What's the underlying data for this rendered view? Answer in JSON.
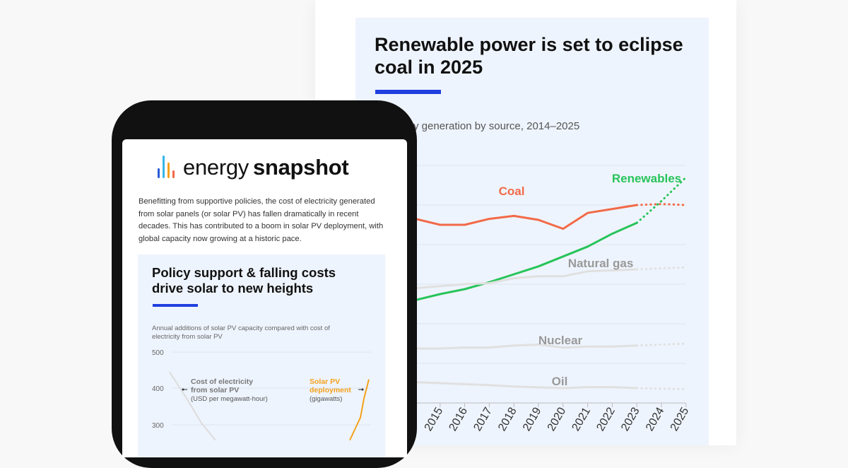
{
  "document": {
    "title": "Renewable power is set to eclipse coal in 2025",
    "subtitle": "electricity generation by source, 2014–2025",
    "accent_color": "#1f3fe0",
    "chart_data": {
      "type": "line",
      "x": [
        "2014",
        "2015",
        "2016",
        "2017",
        "2018",
        "2019",
        "2020",
        "2021",
        "2022",
        "2023",
        "2024",
        "2025"
      ],
      "x_tick_labels": [
        "2015",
        "2016",
        "2017",
        "2018",
        "2019",
        "2020",
        "2021",
        "2022",
        "2023",
        "2024",
        "2025"
      ],
      "projected_from": "2023",
      "grid": true,
      "series": [
        {
          "name": "Coal",
          "color": "#f26a48",
          "values": [
            9.3,
            9.0,
            9.0,
            9.3,
            9.45,
            9.25,
            8.8,
            9.6,
            9.8,
            10.0,
            10.05,
            10.0
          ]
        },
        {
          "name": "Renewables",
          "color": "#27c45a",
          "values": [
            5.2,
            5.5,
            5.75,
            6.1,
            6.5,
            6.9,
            7.4,
            7.9,
            8.55,
            9.1,
            10.2,
            11.4
          ]
        },
        {
          "name": "Natural gas",
          "color": "#b9b9b9",
          "values": [
            5.8,
            5.9,
            6.0,
            6.05,
            6.3,
            6.4,
            6.4,
            6.65,
            6.7,
            6.75,
            6.8,
            6.85
          ]
        },
        {
          "name": "Nuclear",
          "color": "#b9b9b9",
          "values": [
            2.75,
            2.75,
            2.8,
            2.8,
            2.9,
            2.95,
            2.8,
            2.85,
            2.85,
            2.9,
            2.95,
            3.0
          ]
        },
        {
          "name": "Oil",
          "color": "#b9b9b9",
          "values": [
            1.05,
            1.0,
            0.95,
            0.9,
            0.83,
            0.79,
            0.75,
            0.8,
            0.8,
            0.75,
            0.72,
            0.7
          ]
        }
      ]
    }
  },
  "phone": {
    "logo": {
      "word1": "energy",
      "word2": "snapshot",
      "bar_colors": [
        "#2a5bd7",
        "#35b6e8",
        "#f4a11b",
        "#f26a48"
      ]
    },
    "intro": "Benefitting from supportive policies, the cost of electricity generated from solar panels (or solar PV) has fallen dramatically in recent decades. This has contributed to a boom in solar PV deployment, with global capacity now growing at a historic pace.",
    "card": {
      "title": "Policy support & falling costs drive solar to new heights",
      "subtitle": "Annual additions of solar PV capacity compared with cost of electricity from solar PV",
      "chart_data": {
        "type": "line",
        "y_ticks": [
          500,
          400,
          300
        ],
        "grid": true,
        "annotations": [
          {
            "label": "Cost of electricity from solar PV",
            "unit": "(USD per megawatt-hour)"
          },
          {
            "label": "Solar PV deployment",
            "unit": "(gigawatts)"
          }
        ],
        "series": [
          {
            "name": "Cost of electricity from solar PV",
            "color": "#dcdcdc",
            "points": [
              [
                0,
                445
              ],
              [
                0.2,
                370
              ],
              [
                0.4,
                305
              ],
              [
                0.6,
                258
              ]
            ]
          },
          {
            "name": "Solar PV deployment",
            "color": "#f4a11b",
            "points": [
              [
                0,
                258
              ],
              [
                0.6,
                320
              ],
              [
                1.0,
                372
              ],
              [
                1.3,
                425
              ]
            ]
          }
        ]
      }
    }
  }
}
